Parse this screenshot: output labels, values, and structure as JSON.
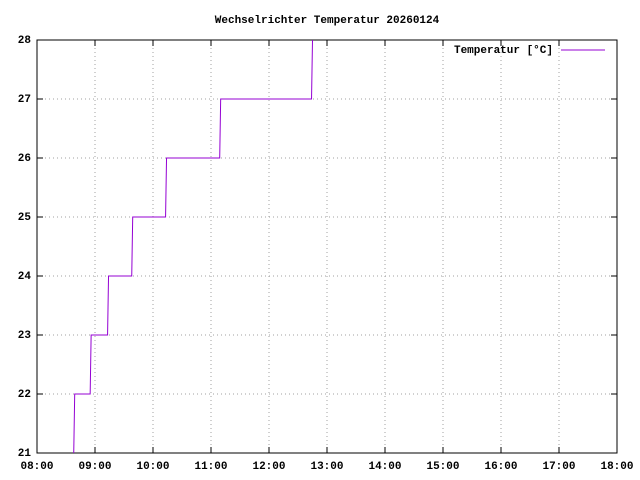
{
  "chart_data": {
    "type": "line",
    "title": "Wechselrichter Temperatur 20260124",
    "x": [
      "08:38",
      "08:39",
      "08:55",
      "08:56",
      "09:13",
      "09:14",
      "09:38",
      "09:39",
      "10:13",
      "10:14",
      "11:09",
      "11:10",
      "12:44",
      "12:45"
    ],
    "series": [
      {
        "name": "Temperatur [°C]",
        "color": "#9400d3",
        "values": [
          21,
          22,
          22,
          23,
          23,
          24,
          24,
          25,
          25,
          26,
          26,
          27,
          27,
          28
        ]
      }
    ],
    "xlim": [
      "08:00",
      "18:00"
    ],
    "xticks": [
      "08:00",
      "09:00",
      "10:00",
      "11:00",
      "12:00",
      "13:00",
      "14:00",
      "15:00",
      "16:00",
      "17:00",
      "18:00"
    ],
    "ylim": [
      21,
      28
    ],
    "yticks": [
      21,
      22,
      23,
      24,
      25,
      26,
      27,
      28
    ],
    "grid": true,
    "legend": "top-right"
  }
}
